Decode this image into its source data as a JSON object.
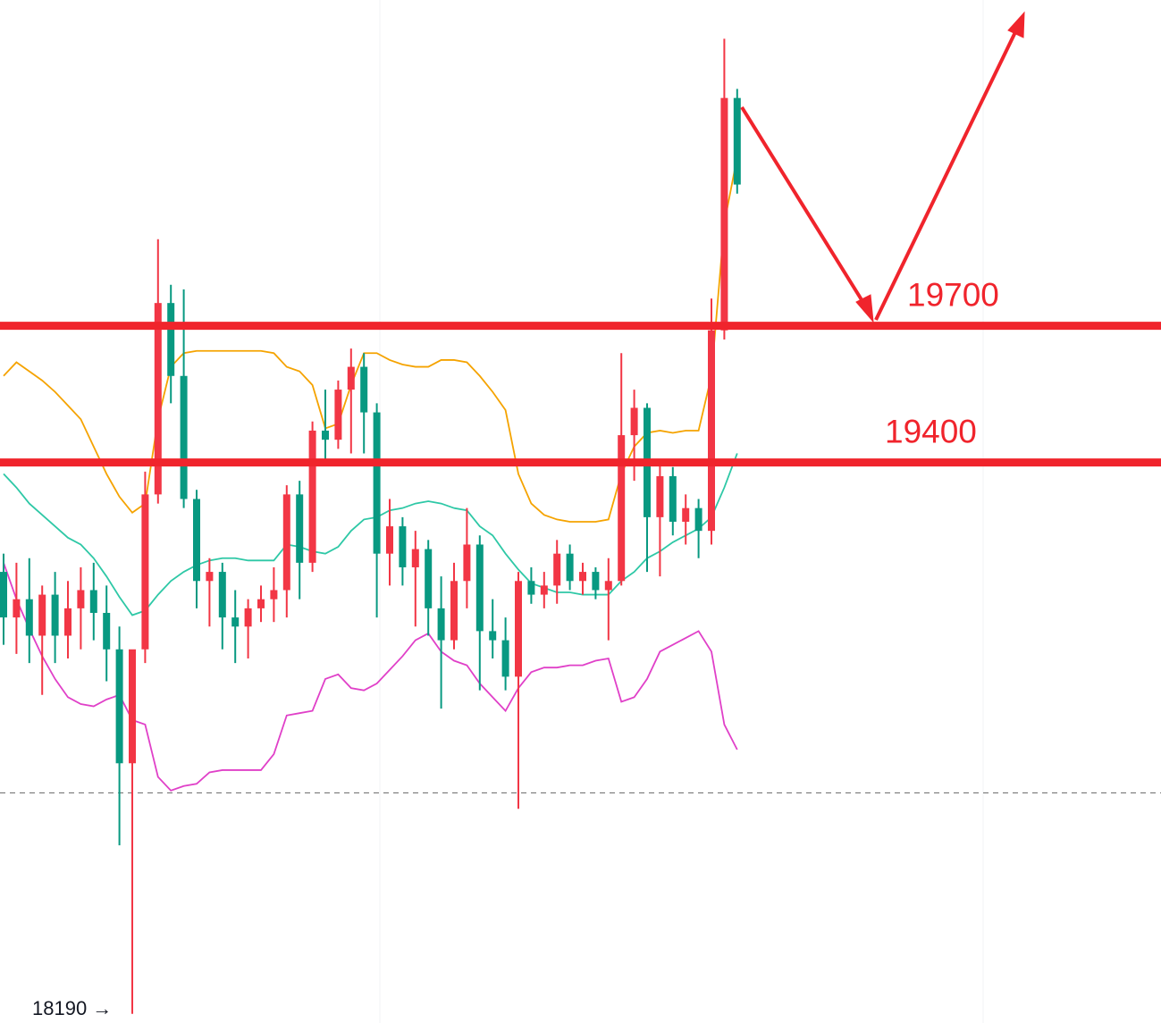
{
  "chart_data": {
    "type": "candlestick",
    "ylim": [
      18170,
      20415
    ],
    "up_color": "#f23645",
    "down_color": "#089981",
    "open": [
      19160,
      19060,
      19100,
      19020,
      19110,
      19020,
      19080,
      19120,
      19070,
      18990,
      18740,
      18990,
      19330,
      19750,
      19590,
      19320,
      19140,
      19160,
      19060,
      19040,
      19080,
      19100,
      19120,
      19330,
      19180,
      19470,
      19450,
      19560,
      19610,
      19510,
      19200,
      19260,
      19170,
      19210,
      19080,
      19010,
      19140,
      19220,
      19030,
      19010,
      18930,
      19140,
      19110,
      19130,
      19200,
      19140,
      19160,
      19120,
      19140,
      19460,
      19520,
      19280,
      19370,
      19270,
      19300,
      19250,
      19690,
      20200
    ],
    "high": [
      19200,
      19180,
      19190,
      19130,
      19160,
      19140,
      19170,
      19180,
      19130,
      19040,
      18980,
      19380,
      19890,
      19790,
      19780,
      19340,
      19190,
      19180,
      19120,
      19100,
      19130,
      19170,
      19350,
      19360,
      19490,
      19560,
      19580,
      19650,
      19640,
      19530,
      19320,
      19280,
      19250,
      19230,
      19150,
      19180,
      19300,
      19240,
      19100,
      19060,
      19160,
      19170,
      19160,
      19230,
      19220,
      19180,
      19170,
      19190,
      19640,
      19560,
      19530,
      19400,
      19390,
      19330,
      19320,
      19760,
      20330,
      20220
    ],
    "low": [
      19000,
      18980,
      18960,
      18890,
      18960,
      18970,
      18990,
      19010,
      18920,
      18560,
      18190,
      18960,
      19310,
      19530,
      19300,
      19080,
      19040,
      18990,
      18960,
      18970,
      19050,
      19050,
      19060,
      19100,
      19160,
      19400,
      19430,
      19420,
      19420,
      19060,
      19130,
      19130,
      19040,
      19020,
      18860,
      18990,
      19080,
      18900,
      18970,
      18900,
      18640,
      19090,
      19080,
      19090,
      19120,
      19110,
      19100,
      19010,
      19130,
      19360,
      19160,
      19150,
      19240,
      19220,
      19190,
      19220,
      19670,
      19990
    ],
    "close": [
      19060,
      19100,
      19020,
      19110,
      19020,
      19080,
      19120,
      19070,
      18990,
      18740,
      18990,
      19330,
      19750,
      19590,
      19320,
      19140,
      19160,
      19060,
      19040,
      19080,
      19100,
      19120,
      19330,
      19180,
      19470,
      19450,
      19560,
      19610,
      19510,
      19200,
      19260,
      19170,
      19210,
      19080,
      19010,
      19140,
      19220,
      19030,
      19010,
      18930,
      19140,
      19110,
      19130,
      19200,
      19140,
      19160,
      19120,
      19140,
      19460,
      19520,
      19280,
      19370,
      19270,
      19300,
      19250,
      19690,
      20200,
      20010
    ],
    "bands": [
      {
        "color": "#f5a300",
        "values": [
          19590,
          19620,
          19600,
          19580,
          19555,
          19525,
          19495,
          19435,
          19375,
          19325,
          19290,
          19310,
          19495,
          19610,
          19640,
          19645,
          19645,
          19645,
          19645,
          19645,
          19645,
          19640,
          19610,
          19600,
          19570,
          19475,
          19485,
          19570,
          19640,
          19640,
          19625,
          19615,
          19610,
          19610,
          19625,
          19625,
          19620,
          19590,
          19555,
          19515,
          19375,
          19310,
          19285,
          19275,
          19270,
          19270,
          19270,
          19275,
          19375,
          19435,
          19465,
          19470,
          19465,
          19470,
          19470,
          19590,
          19925,
          20070
        ]
      },
      {
        "color": "#2ec8a6",
        "values": [
          19375,
          19345,
          19310,
          19285,
          19260,
          19235,
          19220,
          19190,
          19150,
          19105,
          19065,
          19075,
          19110,
          19140,
          19160,
          19175,
          19185,
          19190,
          19190,
          19185,
          19185,
          19185,
          19220,
          19215,
          19205,
          19200,
          19215,
          19250,
          19275,
          19280,
          19295,
          19300,
          19310,
          19315,
          19310,
          19300,
          19295,
          19260,
          19240,
          19200,
          19165,
          19135,
          19125,
          19115,
          19115,
          19110,
          19110,
          19110,
          19140,
          19160,
          19190,
          19205,
          19225,
          19240,
          19255,
          19280,
          19345,
          19420
        ]
      },
      {
        "color": "#e040c8",
        "values": [
          19180,
          19100,
          19035,
          18975,
          18925,
          18885,
          18870,
          18865,
          18880,
          18890,
          18835,
          18825,
          18710,
          18680,
          18690,
          18695,
          18720,
          18725,
          18725,
          18725,
          18725,
          18760,
          18845,
          18850,
          18855,
          18925,
          18935,
          18905,
          18900,
          18915,
          18945,
          18975,
          19010,
          19025,
          18985,
          18965,
          18955,
          18915,
          18885,
          18855,
          18905,
          18940,
          18950,
          18950,
          18955,
          18955,
          18965,
          18970,
          18875,
          18885,
          18925,
          18985,
          19000,
          19015,
          19030,
          18985,
          18825,
          18770
        ]
      }
    ],
    "levels": [
      19700,
      19400
    ],
    "level_color": "#f0242c",
    "dashed_line": 18675,
    "low_label": "18190 →"
  }
}
